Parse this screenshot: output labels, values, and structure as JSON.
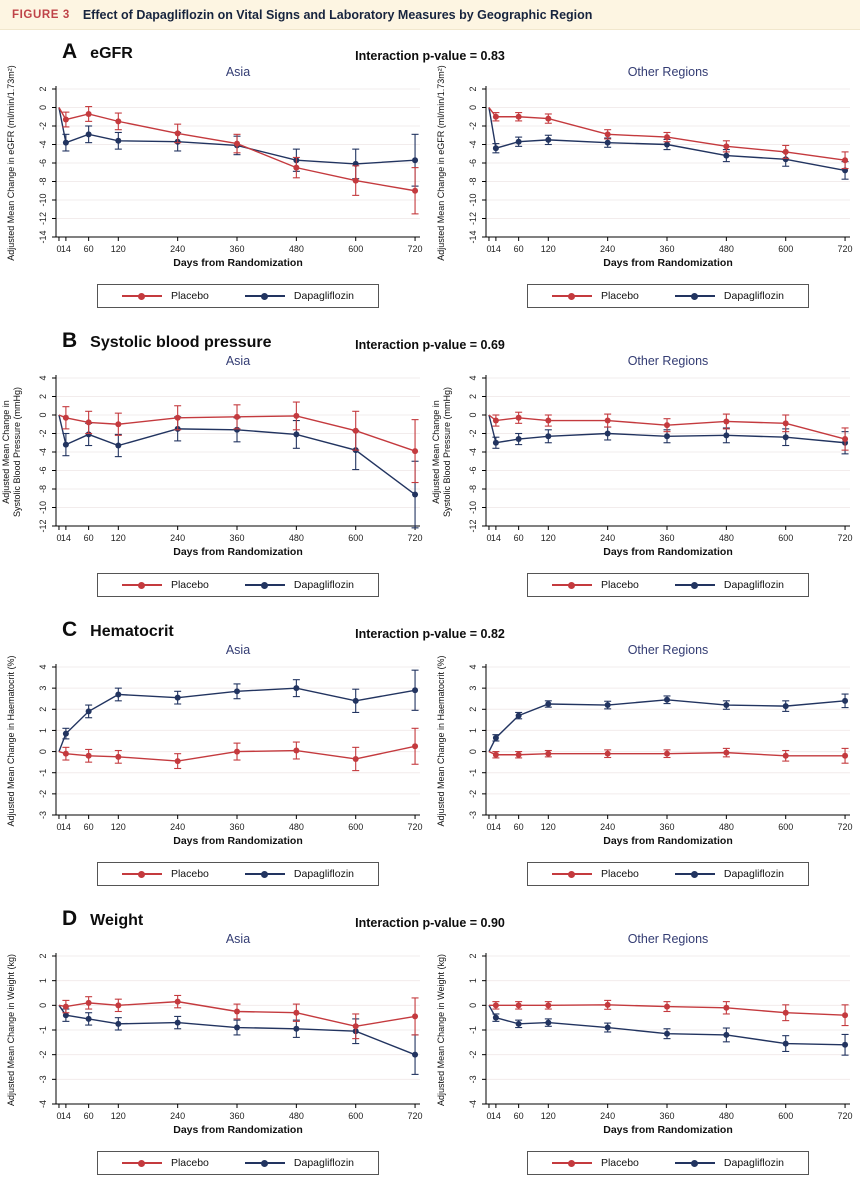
{
  "figure_header": {
    "label": "FIGURE 3",
    "title": "Effect of Dapagliflozin on Vital Signs and Laboratory Measures by Geographic Region"
  },
  "colors": {
    "header_bg": "#fdf5e2",
    "header_label": "#bf4348",
    "header_title": "#17243e",
    "subplot_title": "#333c73",
    "grid": "#f2ecec",
    "axis": "#000000",
    "placebo": "#c43a3e",
    "dapagliflozin": "#223460"
  },
  "legend": {
    "items": [
      {
        "label": "Placebo",
        "color": "#c43a3e"
      },
      {
        "label": "Dapagliflozin",
        "color": "#223460"
      }
    ]
  },
  "chart_data": [
    {
      "type": "line",
      "letter": "A",
      "title": "eGFR",
      "interaction": "Interaction p-value = 0.83",
      "xlabel": "Days from Randomization",
      "ylabel_lines": [
        "Adjusted Mean Change in eGFR (ml/min/1.73m²)"
      ],
      "xdomain": [
        -6,
        730
      ],
      "x": [
        0,
        14,
        60,
        120,
        240,
        360,
        480,
        600,
        720
      ],
      "xticks": [
        0,
        14,
        60,
        120,
        240,
        360,
        480,
        600,
        720
      ],
      "ylim": [
        -14,
        2
      ],
      "yticks": [
        2,
        0,
        -2,
        -4,
        -6,
        -8,
        -10,
        -12,
        -14
      ],
      "subplots": [
        {
          "title": "Asia",
          "series": [
            {
              "name": "Placebo",
              "y": [
                0,
                -1.3,
                -0.7,
                -1.5,
                -2.8,
                -3.9,
                -6.5,
                -7.9,
                -9.0
              ],
              "err": [
                0,
                0.8,
                0.8,
                0.9,
                1.0,
                1.0,
                1.1,
                1.6,
                2.5
              ]
            },
            {
              "name": "Dapagliflozin",
              "y": [
                0,
                -3.8,
                -2.9,
                -3.6,
                -3.7,
                -4.1,
                -5.7,
                -6.1,
                -5.7
              ],
              "err": [
                0,
                0.9,
                0.9,
                0.9,
                1.0,
                1.0,
                1.2,
                1.6,
                2.8
              ]
            }
          ]
        },
        {
          "title": "Other Regions",
          "series": [
            {
              "name": "Placebo",
              "y": [
                0,
                -1.0,
                -1.0,
                -1.2,
                -2.9,
                -3.2,
                -4.2,
                -4.8,
                -5.7
              ],
              "err": [
                0,
                0.45,
                0.45,
                0.5,
                0.5,
                0.5,
                0.6,
                0.7,
                0.9
              ]
            },
            {
              "name": "Dapagliflozin",
              "y": [
                0,
                -4.4,
                -3.7,
                -3.5,
                -3.8,
                -4.0,
                -5.2,
                -5.6,
                -6.8
              ],
              "err": [
                0,
                0.5,
                0.5,
                0.5,
                0.5,
                0.55,
                0.65,
                0.75,
                0.95
              ]
            }
          ]
        }
      ]
    },
    {
      "type": "line",
      "letter": "B",
      "title": "Systolic blood pressure",
      "interaction": "Interaction p-value = 0.69",
      "xlabel": "Days from Randomization",
      "ylabel_lines": [
        "Adjusted Mean Change in",
        "Systolic Blood Pressure (mmHg)"
      ],
      "xdomain": [
        -6,
        730
      ],
      "x": [
        0,
        14,
        60,
        120,
        240,
        360,
        480,
        600,
        720
      ],
      "xticks": [
        0,
        14,
        60,
        120,
        240,
        360,
        480,
        600,
        720
      ],
      "ylim": [
        -12,
        4
      ],
      "yticks": [
        4,
        2,
        0,
        -2,
        -4,
        -6,
        -8,
        -10,
        -12
      ],
      "subplots": [
        {
          "title": "Asia",
          "series": [
            {
              "name": "Placebo",
              "y": [
                0,
                -0.3,
                -0.8,
                -1.0,
                -0.3,
                -0.2,
                -0.1,
                -1.7,
                -3.9
              ],
              "err": [
                0,
                1.2,
                1.2,
                1.2,
                1.3,
                1.3,
                1.5,
                2.1,
                3.4
              ]
            },
            {
              "name": "Dapagliflozin",
              "y": [
                0,
                -3.2,
                -2.1,
                -3.3,
                -1.5,
                -1.6,
                -2.1,
                -3.8,
                -8.6
              ],
              "err": [
                0,
                1.2,
                1.2,
                1.2,
                1.3,
                1.3,
                1.5,
                2.1,
                3.6
              ]
            }
          ]
        },
        {
          "title": "Other Regions",
          "series": [
            {
              "name": "Placebo",
              "y": [
                0,
                -0.6,
                -0.3,
                -0.6,
                -0.6,
                -1.1,
                -0.7,
                -0.9,
                -2.6
              ],
              "err": [
                0,
                0.6,
                0.6,
                0.6,
                0.7,
                0.7,
                0.8,
                0.9,
                1.2
              ]
            },
            {
              "name": "Dapagliflozin",
              "y": [
                0,
                -3.0,
                -2.6,
                -2.3,
                -2.0,
                -2.3,
                -2.2,
                -2.4,
                -3.0
              ],
              "err": [
                0,
                0.6,
                0.6,
                0.7,
                0.7,
                0.7,
                0.8,
                0.9,
                1.2
              ]
            }
          ]
        }
      ]
    },
    {
      "type": "line",
      "letter": "C",
      "title": "Hematocrit",
      "interaction": "Interaction p-value = 0.82",
      "xlabel": "Days from Randomization",
      "ylabel_lines": [
        "Adjusted Mean Change in Haematocrit (%)"
      ],
      "xdomain": [
        -6,
        730
      ],
      "x": [
        0,
        14,
        60,
        120,
        240,
        360,
        480,
        600,
        720
      ],
      "xticks": [
        0,
        14,
        60,
        120,
        240,
        360,
        480,
        600,
        720
      ],
      "ylim": [
        -3,
        4
      ],
      "yticks": [
        4,
        3,
        2,
        1,
        0,
        -1,
        -2,
        -3
      ],
      "subplots": [
        {
          "title": "Asia",
          "series": [
            {
              "name": "Placebo",
              "y": [
                0,
                -0.1,
                -0.2,
                -0.25,
                -0.45,
                0.0,
                0.05,
                -0.35,
                0.25
              ],
              "err": [
                0,
                0.3,
                0.3,
                0.3,
                0.35,
                0.4,
                0.4,
                0.55,
                0.85
              ]
            },
            {
              "name": "Dapagliflozin",
              "y": [
                0,
                0.85,
                1.9,
                2.7,
                2.55,
                2.85,
                3.0,
                2.4,
                2.9
              ],
              "err": [
                0,
                0.25,
                0.3,
                0.3,
                0.3,
                0.35,
                0.4,
                0.55,
                0.95
              ]
            }
          ]
        },
        {
          "title": "Other Regions",
          "series": [
            {
              "name": "Placebo",
              "y": [
                0,
                -0.15,
                -0.15,
                -0.1,
                -0.1,
                -0.1,
                -0.05,
                -0.2,
                -0.2
              ],
              "err": [
                0,
                0.15,
                0.15,
                0.15,
                0.18,
                0.18,
                0.2,
                0.25,
                0.35
              ]
            },
            {
              "name": "Dapagliflozin",
              "y": [
                0,
                0.65,
                1.7,
                2.25,
                2.2,
                2.45,
                2.2,
                2.15,
                2.4
              ],
              "err": [
                0,
                0.15,
                0.15,
                0.15,
                0.18,
                0.18,
                0.2,
                0.25,
                0.32
              ]
            }
          ]
        }
      ]
    },
    {
      "type": "line",
      "letter": "D",
      "title": "Weight",
      "interaction": "Interaction p-value = 0.90",
      "xlabel": "Days from Randomization",
      "ylabel_lines": [
        "Adjusted Mean Change in Weight (kg)"
      ],
      "xdomain": [
        -6,
        730
      ],
      "x": [
        0,
        14,
        60,
        120,
        240,
        360,
        480,
        600,
        720
      ],
      "xticks": [
        0,
        14,
        60,
        120,
        240,
        360,
        480,
        600,
        720
      ],
      "ylim": [
        -4,
        2
      ],
      "yticks": [
        2,
        1,
        0,
        -1,
        -2,
        -3,
        -4
      ],
      "subplots": [
        {
          "title": "Asia",
          "series": [
            {
              "name": "Placebo",
              "y": [
                0,
                -0.05,
                0.1,
                0.0,
                0.15,
                -0.25,
                -0.3,
                -0.85,
                -0.45
              ],
              "err": [
                0,
                0.25,
                0.25,
                0.25,
                0.25,
                0.3,
                0.35,
                0.5,
                0.75
              ]
            },
            {
              "name": "Dapagliflozin",
              "y": [
                0,
                -0.4,
                -0.55,
                -0.75,
                -0.7,
                -0.9,
                -0.95,
                -1.05,
                -2.0
              ],
              "err": [
                0,
                0.25,
                0.25,
                0.25,
                0.25,
                0.3,
                0.35,
                0.5,
                0.8
              ]
            }
          ]
        },
        {
          "title": "Other Regions",
          "series": [
            {
              "name": "Placebo",
              "y": [
                0,
                0.0,
                0.0,
                0.0,
                0.02,
                -0.05,
                -0.1,
                -0.3,
                -0.4
              ],
              "err": [
                0,
                0.15,
                0.15,
                0.15,
                0.18,
                0.2,
                0.25,
                0.32,
                0.42
              ]
            },
            {
              "name": "Dapagliflozin",
              "y": [
                0,
                -0.5,
                -0.75,
                -0.7,
                -0.9,
                -1.15,
                -1.2,
                -1.55,
                -1.6
              ],
              "err": [
                0,
                0.15,
                0.15,
                0.15,
                0.18,
                0.2,
                0.28,
                0.32,
                0.42
              ]
            }
          ]
        }
      ]
    }
  ]
}
